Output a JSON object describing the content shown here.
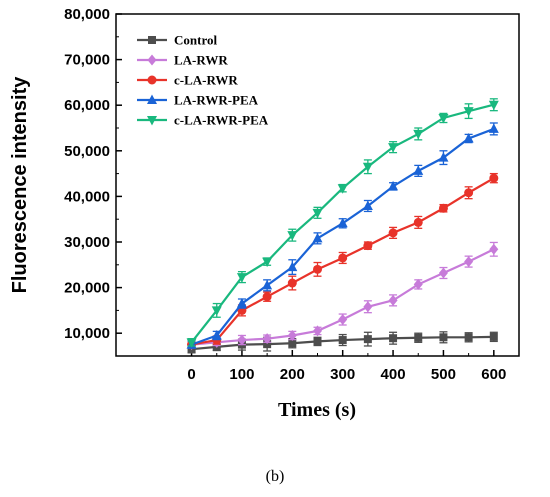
{
  "caption": "(b)",
  "chart_data": {
    "type": "line",
    "xlabel": "Times (s)",
    "ylabel": "Fluorescence intensity",
    "xlim": [
      -150,
      650
    ],
    "ylim": [
      5000,
      80000
    ],
    "xticks": [
      0,
      100,
      200,
      300,
      400,
      500,
      600
    ],
    "yticks": [
      10000,
      20000,
      30000,
      40000,
      50000,
      60000,
      70000,
      80000
    ],
    "ytick_labels": [
      "10,000",
      "20,000",
      "30,000",
      "40,000",
      "50,000",
      "60,000",
      "70,000",
      "80,000"
    ],
    "legend_position": "top-left",
    "x": [
      0,
      50,
      100,
      150,
      200,
      250,
      300,
      350,
      400,
      450,
      500,
      550,
      600
    ],
    "series": [
      {
        "name": "Control",
        "color": "#4d4d4d",
        "marker": "square",
        "values": [
          6500,
          7000,
          7500,
          7600,
          7800,
          8200,
          8500,
          8700,
          8900,
          9000,
          9100,
          9100,
          9200
        ],
        "errors": [
          800,
          800,
          1200,
          1500,
          1000,
          900,
          1200,
          1500,
          1300,
          1000,
          1200,
          1000,
          1000
        ]
      },
      {
        "name": "LA-RWR",
        "color": "#c77bd9",
        "marker": "diamond",
        "values": [
          7500,
          8000,
          8500,
          8800,
          9500,
          10500,
          13000,
          15800,
          17200,
          20700,
          23200,
          25700,
          28400
        ],
        "errors": [
          600,
          700,
          1000,
          800,
          900,
          800,
          1200,
          1300,
          1200,
          1000,
          1200,
          1200,
          1500
        ]
      },
      {
        "name": "c-LA-RWR",
        "color": "#e8332a",
        "marker": "circle",
        "values": [
          7500,
          8500,
          15000,
          18000,
          21000,
          24000,
          26500,
          29200,
          32000,
          34300,
          37400,
          40800,
          44000
        ],
        "errors": [
          800,
          900,
          1200,
          1000,
          1500,
          1500,
          1200,
          800,
          1200,
          1300,
          800,
          1300,
          1000
        ]
      },
      {
        "name": "LA-RWR-PEA",
        "color": "#1a63d6",
        "marker": "triangle-up",
        "values": [
          7500,
          9500,
          16500,
          20500,
          24500,
          30800,
          34100,
          37900,
          42200,
          45600,
          48500,
          52700,
          54800
        ],
        "errors": [
          800,
          900,
          1000,
          1200,
          1600,
          1200,
          1000,
          1200,
          800,
          1200,
          1500,
          900,
          1300
        ]
      },
      {
        "name": "c-LA-RWR-PEA",
        "color": "#19b87e",
        "marker": "triangle-down",
        "values": [
          8000,
          15000,
          22300,
          25700,
          31500,
          36400,
          41800,
          46500,
          50800,
          53700,
          57200,
          58700,
          60100
        ],
        "errors": [
          800,
          1500,
          1200,
          800,
          1300,
          1200,
          800,
          1500,
          1200,
          1300,
          1000,
          1600,
          1300
        ]
      }
    ]
  }
}
